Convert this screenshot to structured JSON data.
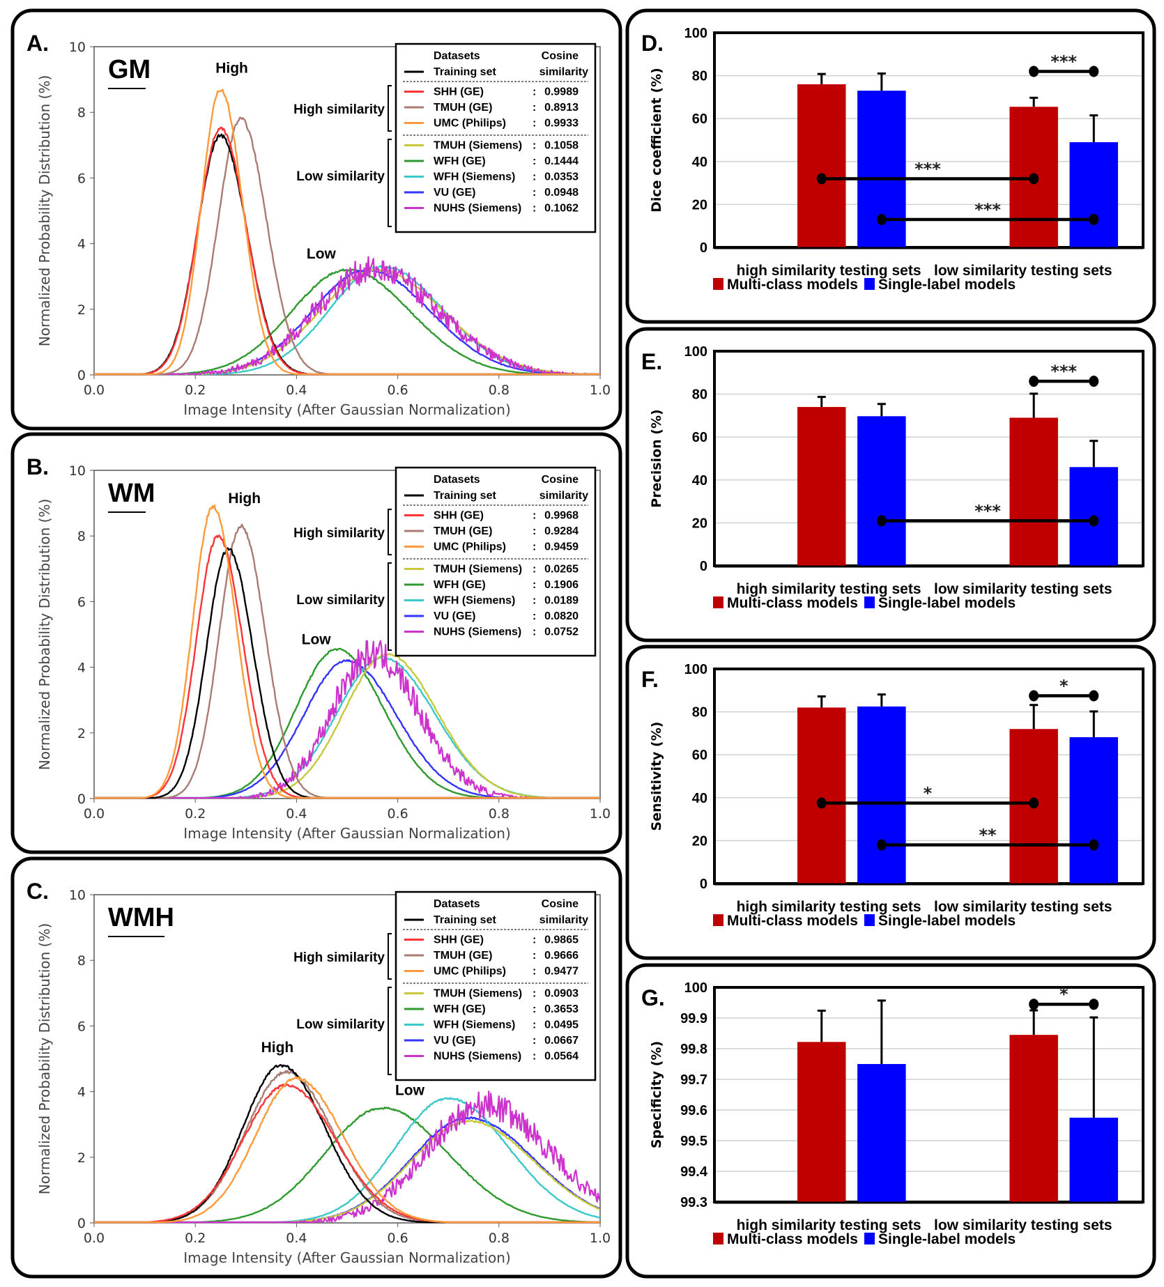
{
  "figure": {
    "density_panels": [
      {
        "label": "A.",
        "tissue": "GM",
        "high_label": "High",
        "low_label": "Low",
        "group_high": "High similarity",
        "group_low": "Low similarity"
      },
      {
        "label": "B.",
        "tissue": "WM",
        "high_label": "High",
        "low_label": "Low",
        "group_high": "High similarity",
        "group_low": "Low similarity"
      },
      {
        "label": "C.",
        "tissue": "WMH",
        "high_label": "High",
        "low_label": "Low",
        "group_high": "High similarity",
        "group_low": "Low similarity"
      }
    ],
    "bar_panels": [
      {
        "label": "D."
      },
      {
        "label": "E."
      },
      {
        "label": "F."
      },
      {
        "label": "G."
      }
    ]
  },
  "chart_data": [
    {
      "type": "line",
      "panel": "A",
      "title": "GM",
      "xlabel": "Image Intensity (After Gaussian Normalization)",
      "ylabel": "Normalized Probability Distribution (%)",
      "xlim": [
        0.0,
        1.0
      ],
      "ylim": [
        0,
        10
      ],
      "xticks": [
        "0.0",
        "0.2",
        "0.4",
        "0.6",
        "0.8",
        "1.0"
      ],
      "yticks": [
        "0",
        "2",
        "4",
        "6",
        "8",
        "10"
      ],
      "legend_header": {
        "col1": "Datasets",
        "col2": "Cosine",
        "col2b": "similarity",
        "training": "Training set"
      },
      "legend_placement": "top-right",
      "series": [
        {
          "name": "Training set",
          "color": "#000000",
          "peak_x": 0.25,
          "peak_y": 7.3,
          "sigma": 0.048,
          "group": "reference"
        },
        {
          "name": "SHH (GE)",
          "cosine": "0.9989",
          "color": "#ff3333",
          "peak_x": 0.25,
          "peak_y": 7.5,
          "sigma": 0.047,
          "group": "high"
        },
        {
          "name": "TMUH (GE)",
          "cosine": "0.8913",
          "color": "#a87c72",
          "peak_x": 0.29,
          "peak_y": 7.8,
          "sigma": 0.047,
          "group": "high"
        },
        {
          "name": "UMC (Philips)",
          "cosine": "0.9933",
          "color": "#ff9a3a",
          "peak_x": 0.25,
          "peak_y": 8.7,
          "sigma": 0.04,
          "group": "high"
        },
        {
          "name": "TMUH (Siemens)",
          "cosine": "0.1058",
          "color": "#c8c83c",
          "peak_x": 0.56,
          "peak_y": 3.2,
          "sigma": 0.12,
          "group": "low"
        },
        {
          "name": "WFH (GE)",
          "cosine": "0.1444",
          "color": "#2e9a2e",
          "peak_x": 0.5,
          "peak_y": 3.2,
          "sigma": 0.115,
          "group": "low"
        },
        {
          "name": "WFH (Siemens)",
          "cosine": "0.0353",
          "color": "#3cc8c8",
          "peak_x": 0.57,
          "peak_y": 3.3,
          "sigma": 0.11,
          "group": "low"
        },
        {
          "name": "VU (GE)",
          "cosine": "0.0948",
          "color": "#3333ff",
          "peak_x": 0.54,
          "peak_y": 3.2,
          "sigma": 0.115,
          "group": "low"
        },
        {
          "name": "NUHS (Siemens)",
          "cosine": "0.1062",
          "color": "#cc33cc",
          "peak_x": 0.55,
          "peak_y": 3.2,
          "sigma": 0.12,
          "group": "low"
        }
      ]
    },
    {
      "type": "line",
      "panel": "B",
      "title": "WM",
      "xlabel": "Image Intensity (After Gaussian Normalization)",
      "ylabel": "Normalized Probability Distribution (%)",
      "xlim": [
        0.0,
        1.0
      ],
      "ylim": [
        0,
        10
      ],
      "xticks": [
        "0.0",
        "0.2",
        "0.4",
        "0.6",
        "0.8",
        "1.0"
      ],
      "yticks": [
        "0",
        "2",
        "4",
        "6",
        "8",
        "10"
      ],
      "legend_header": {
        "col1": "Datasets",
        "col2": "Cosine",
        "col2b": "similarity",
        "training": "Training set"
      },
      "legend_placement": "top-right",
      "series": [
        {
          "name": "Training set",
          "color": "#000000",
          "peak_x": 0.265,
          "peak_y": 7.6,
          "sigma": 0.045,
          "group": "reference"
        },
        {
          "name": "SHH (GE)",
          "cosine": "0.9968",
          "color": "#ff3333",
          "peak_x": 0.245,
          "peak_y": 8.0,
          "sigma": 0.045,
          "group": "high"
        },
        {
          "name": "TMUH (GE)",
          "cosine": "0.9284",
          "color": "#a87c72",
          "peak_x": 0.29,
          "peak_y": 8.3,
          "sigma": 0.045,
          "group": "high"
        },
        {
          "name": "UMC (Philips)",
          "cosine": "0.9459",
          "color": "#ff9a3a",
          "peak_x": 0.235,
          "peak_y": 8.9,
          "sigma": 0.042,
          "group": "high"
        },
        {
          "name": "TMUH (Siemens)",
          "cosine": "0.0265",
          "color": "#c8c83c",
          "peak_x": 0.58,
          "peak_y": 4.4,
          "sigma": 0.09,
          "group": "low"
        },
        {
          "name": "WFH (GE)",
          "cosine": "0.1906",
          "color": "#2e9a2e",
          "peak_x": 0.48,
          "peak_y": 4.55,
          "sigma": 0.085,
          "group": "low"
        },
        {
          "name": "WFH (Siemens)",
          "cosine": "0.0189",
          "color": "#3cc8c8",
          "peak_x": 0.57,
          "peak_y": 4.3,
          "sigma": 0.095,
          "group": "low"
        },
        {
          "name": "VU (GE)",
          "cosine": "0.0820",
          "color": "#3333ff",
          "peak_x": 0.5,
          "peak_y": 4.2,
          "sigma": 0.09,
          "group": "low"
        },
        {
          "name": "NUHS (Siemens)",
          "cosine": "0.0752",
          "color": "#cc33cc",
          "peak_x": 0.55,
          "peak_y": 4.4,
          "sigma": 0.085,
          "group": "low"
        }
      ]
    },
    {
      "type": "line",
      "panel": "C",
      "title": "WMH",
      "xlabel": "Image Intensity (After Gaussian Normalization)",
      "ylabel": "Normalized Probability Distribution (%)",
      "xlim": [
        0.0,
        1.0
      ],
      "ylim": [
        0,
        10
      ],
      "xticks": [
        "0.0",
        "0.2",
        "0.4",
        "0.6",
        "0.8",
        "1.0"
      ],
      "yticks": [
        "0",
        "2",
        "4",
        "6",
        "8",
        "10"
      ],
      "legend_header": {
        "col1": "Datasets",
        "col2": "Cosine",
        "col2b": "similarity",
        "training": "Training set"
      },
      "legend_placement": "top-right",
      "series": [
        {
          "name": "Training set",
          "color": "#000000",
          "peak_x": 0.37,
          "peak_y": 4.8,
          "sigma": 0.08,
          "group": "reference"
        },
        {
          "name": "SHH (GE)",
          "cosine": "0.9865",
          "color": "#ff3333",
          "peak_x": 0.38,
          "peak_y": 4.2,
          "sigma": 0.09,
          "group": "high"
        },
        {
          "name": "TMUH (GE)",
          "cosine": "0.9666",
          "color": "#a87c72",
          "peak_x": 0.38,
          "peak_y": 4.6,
          "sigma": 0.085,
          "group": "high"
        },
        {
          "name": "UMC (Philips)",
          "cosine": "0.9477",
          "color": "#ff9a3a",
          "peak_x": 0.4,
          "peak_y": 4.4,
          "sigma": 0.085,
          "group": "high"
        },
        {
          "name": "TMUH (Siemens)",
          "cosine": "0.0903",
          "color": "#c8c83c",
          "peak_x": 0.74,
          "peak_y": 3.1,
          "sigma": 0.12,
          "group": "low"
        },
        {
          "name": "WFH (GE)",
          "cosine": "0.3653",
          "color": "#2e9a2e",
          "peak_x": 0.57,
          "peak_y": 3.5,
          "sigma": 0.12,
          "group": "low"
        },
        {
          "name": "WFH (Siemens)",
          "cosine": "0.0495",
          "color": "#3cc8c8",
          "peak_x": 0.7,
          "peak_y": 3.8,
          "sigma": 0.11,
          "group": "low"
        },
        {
          "name": "VU (GE)",
          "cosine": "0.0667",
          "color": "#3333ff",
          "peak_x": 0.74,
          "peak_y": 3.2,
          "sigma": 0.12,
          "group": "low"
        },
        {
          "name": "NUHS (Siemens)",
          "cosine": "0.0564",
          "color": "#cc33cc",
          "peak_x": 0.77,
          "peak_y": 3.6,
          "sigma": 0.12,
          "group": "low"
        }
      ]
    },
    {
      "type": "bar",
      "panel": "D",
      "ylabel": "Dice coefficient (%)",
      "ylim": [
        0,
        100
      ],
      "yticks": [
        "0",
        "20",
        "40",
        "60",
        "80",
        "100"
      ],
      "categories": [
        "high similarity testing sets",
        "low similarity testing sets"
      ],
      "series": [
        {
          "name": "Multi-class models",
          "color": "#c00000",
          "values": [
            76,
            65.5
          ],
          "errors": [
            4.8,
            4.2
          ]
        },
        {
          "name": "Single-label models",
          "color": "#0000ff",
          "values": [
            73,
            49
          ],
          "errors": [
            8,
            12.5
          ]
        }
      ],
      "significance": [
        {
          "from": [
            1,
            0
          ],
          "to": [
            1,
            1
          ],
          "level": 82,
          "stars": "***"
        },
        {
          "from": [
            0,
            0
          ],
          "to": [
            1,
            0
          ],
          "level": 32,
          "stars": "***"
        },
        {
          "from": [
            0,
            1
          ],
          "to": [
            1,
            1
          ],
          "level": 13,
          "stars": "***"
        }
      ],
      "legend_placement": "bottom"
    },
    {
      "type": "bar",
      "panel": "E",
      "ylabel": "Precision (%)",
      "ylim": [
        0,
        100
      ],
      "yticks": [
        "0",
        "20",
        "40",
        "60",
        "80",
        "100"
      ],
      "categories": [
        "high similarity testing sets",
        "low similarity testing sets"
      ],
      "series": [
        {
          "name": "Multi-class models",
          "color": "#c00000",
          "values": [
            74,
            69
          ],
          "errors": [
            4.7,
            11.2
          ]
        },
        {
          "name": "Single-label models",
          "color": "#0000ff",
          "values": [
            69.7,
            46
          ],
          "errors": [
            5.7,
            12.2
          ]
        }
      ],
      "significance": [
        {
          "from": [
            1,
            0
          ],
          "to": [
            1,
            1
          ],
          "level": 86,
          "stars": "***"
        },
        {
          "from": [
            0,
            1
          ],
          "to": [
            1,
            1
          ],
          "level": 21,
          "stars": "***"
        }
      ],
      "legend_placement": "bottom"
    },
    {
      "type": "bar",
      "panel": "F",
      "ylabel": "Sensitivity (%)",
      "ylim": [
        0,
        100
      ],
      "yticks": [
        "0",
        "20",
        "40",
        "60",
        "80",
        "100"
      ],
      "categories": [
        "high similarity testing sets",
        "low similarity testing sets"
      ],
      "series": [
        {
          "name": "Multi-class models",
          "color": "#c00000",
          "values": [
            82,
            72
          ],
          "errors": [
            5.2,
            11.2
          ]
        },
        {
          "name": "Single-label models",
          "color": "#0000ff",
          "values": [
            82.5,
            68.2
          ],
          "errors": [
            5.6,
            12
          ]
        }
      ],
      "significance": [
        {
          "from": [
            1,
            0
          ],
          "to": [
            1,
            1
          ],
          "level": 87.5,
          "stars": "*"
        },
        {
          "from": [
            0,
            0
          ],
          "to": [
            1,
            0
          ],
          "level": 37.5,
          "stars": "*"
        },
        {
          "from": [
            0,
            1
          ],
          "to": [
            1,
            1
          ],
          "level": 18,
          "stars": "**"
        }
      ],
      "legend_placement": "bottom"
    },
    {
      "type": "bar",
      "panel": "G",
      "ylabel": "Specificity (%)",
      "ylim": [
        99.3,
        100
      ],
      "yticks": [
        "99.3",
        "99.4",
        "99.5",
        "99.6",
        "99.7",
        "99.8",
        "99.9",
        "100"
      ],
      "categories": [
        "high similarity testing sets",
        "low similarity testing sets"
      ],
      "series": [
        {
          "name": "Multi-class models",
          "color": "#c00000",
          "values": [
            99.822,
            99.845
          ],
          "errors": [
            0.102,
            0.08
          ]
        },
        {
          "name": "Single-label models",
          "color": "#0000ff",
          "values": [
            99.75,
            99.575
          ],
          "errors": [
            0.207,
            0.327
          ]
        }
      ],
      "significance": [
        {
          "from": [
            1,
            0
          ],
          "to": [
            1,
            1
          ],
          "level": 99.945,
          "stars": "*"
        }
      ],
      "legend_placement": "bottom"
    }
  ]
}
